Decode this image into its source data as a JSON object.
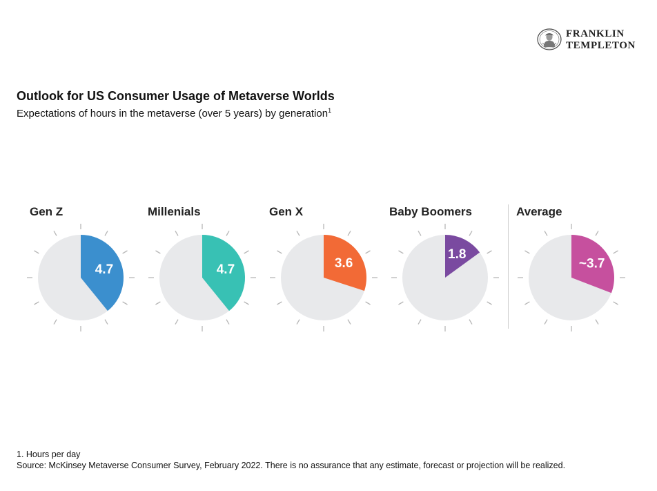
{
  "brand": {
    "name_line1": "FRANKLIN",
    "name_line2": "TEMPLETON"
  },
  "header": {
    "title": "Outlook for US Consumer Usage of Metaverse Worlds",
    "subtitle": "Expectations of hours in the metaverse (over 5 years) by generation",
    "subtitle_sup": "1"
  },
  "chart_data": {
    "type": "pie",
    "title": "Outlook for US Consumer Usage of Metaverse Worlds",
    "subtitle": "Expectations of hours in the metaverse (over 5 years) by generation",
    "unit": "Hours per day",
    "scale_max": 12,
    "items": [
      {
        "name": "Gen Z",
        "value": 4.7,
        "label": "4.7",
        "color": "#3b8fce"
      },
      {
        "name": "Millenials",
        "value": 4.7,
        "label": "4.7",
        "color": "#38c1b4"
      },
      {
        "name": "Gen X",
        "value": 3.6,
        "label": "3.6",
        "color": "#f26a36"
      },
      {
        "name": "Baby Boomers",
        "value": 1.8,
        "label": "1.8",
        "color": "#7a4aa0"
      },
      {
        "name": "Average",
        "value": 3.7,
        "label": "~3.7",
        "color": "#c6509e"
      }
    ],
    "background_color": "#e8e9eb",
    "tick_color": "#b7b7b7"
  },
  "footer": {
    "footnote": "1. Hours per day",
    "source": "Source: McKinsey Metaverse Consumer Survey, February 2022. There is no assurance that any estimate, forecast or projection will be realized."
  }
}
